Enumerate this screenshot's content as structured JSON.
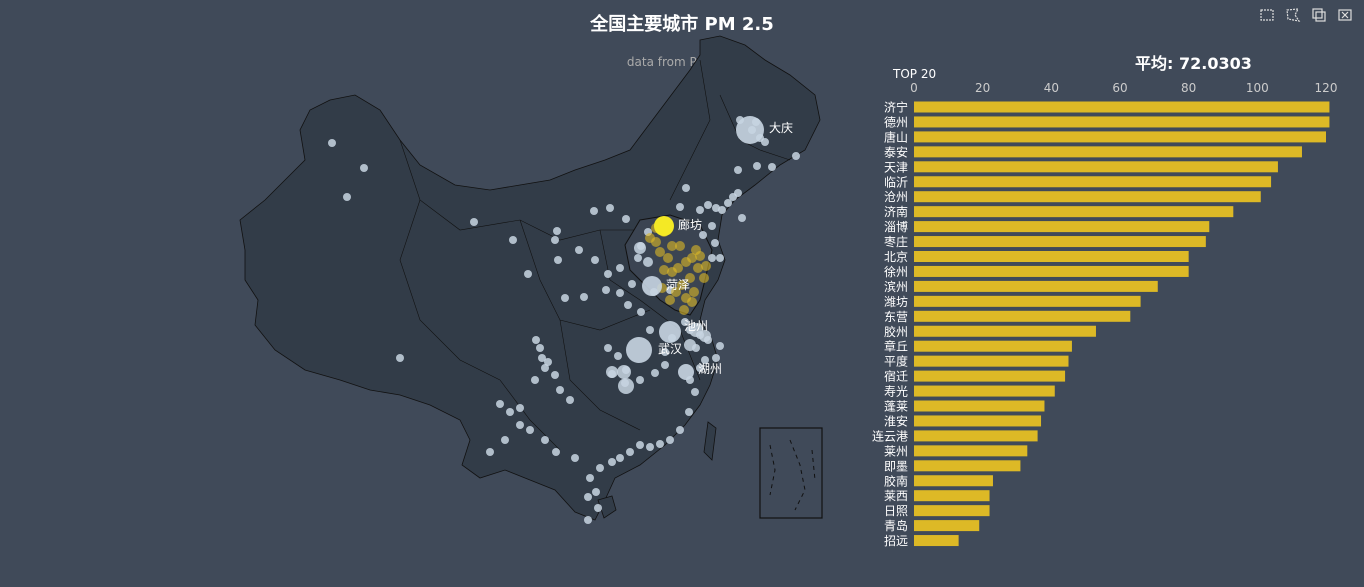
{
  "title": "全国主要城市 PM 2.5",
  "subtitle": "data from PM25.in",
  "toolbox": {
    "items": [
      {
        "name": "rect-select-icon"
      },
      {
        "name": "polygon-select-icon"
      },
      {
        "name": "keep-selection-icon"
      },
      {
        "name": "clear-selection-icon"
      }
    ]
  },
  "bar_title": "平均: 72.0303",
  "bar_subtitle": "TOP 20",
  "colors": {
    "background": "#404a59",
    "land": "#323c48",
    "border": "#111111",
    "scatter": "#ddb926",
    "bar": "#ddb926",
    "dim": "#c8d5e2"
  },
  "chart_data": [
    {
      "type": "bar",
      "orientation": "horizontal",
      "xlim": [
        0,
        120
      ],
      "xticks": [
        0,
        20,
        40,
        60,
        80,
        100,
        120
      ],
      "categories": [
        "济宁",
        "德州",
        "唐山",
        "泰安",
        "天津",
        "临沂",
        "沧州",
        "济南",
        "淄博",
        "枣庄",
        "北京",
        "徐州",
        "滨州",
        "潍坊",
        "东营",
        "胶州",
        "章丘",
        "平度",
        "宿迁",
        "寿光",
        "蓬莱",
        "淮安",
        "连云港",
        "莱州",
        "即墨",
        "胶南",
        "莱西",
        "日照",
        "青岛",
        "招远"
      ],
      "values": [
        121,
        121,
        120,
        113,
        106,
        104,
        101,
        93,
        86,
        85,
        80,
        80,
        71,
        66,
        63,
        53,
        46,
        45,
        44,
        41,
        38,
        37,
        36,
        33,
        31,
        23,
        22,
        22,
        19,
        13
      ]
    },
    {
      "type": "scatter",
      "map": "china",
      "labeled_points": [
        {
          "name": "大庆",
          "size": "large",
          "state": "dim"
        },
        {
          "name": "廊坊",
          "size": "large",
          "state": "highlight"
        },
        {
          "name": "菏泽",
          "size": "large",
          "state": "dim"
        },
        {
          "name": "武汉",
          "size": "large",
          "state": "dim"
        },
        {
          "name": "池州",
          "size": "large",
          "state": "dim"
        },
        {
          "name": "湖州",
          "size": "large",
          "state": "dim"
        }
      ]
    }
  ]
}
